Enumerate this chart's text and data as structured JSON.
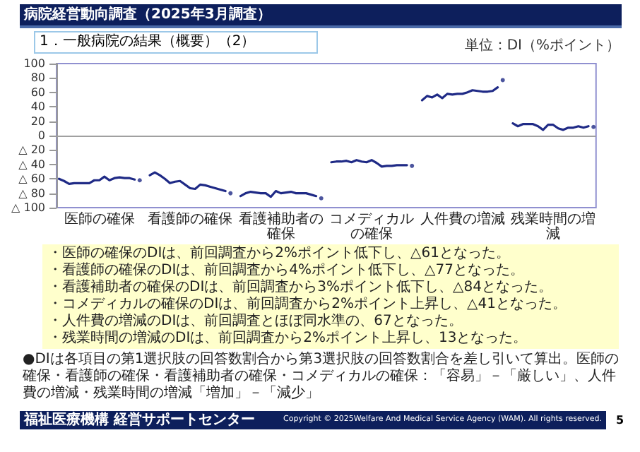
{
  "chart_data": {
    "type": "line",
    "title": "病院経営動向調査（2025年3月調査）",
    "subtitle": "1．一般病院の結果（概要）（2）",
    "ylabel": "単位：DI（%ポイント）",
    "categories": [
      null,
      null,
      null,
      null,
      null,
      null,
      null,
      null,
      "医師の確保",
      null,
      null,
      null,
      null,
      null,
      null,
      null,
      null,
      null,
      null,
      null,
      null,
      null,
      null,
      null,
      null,
      null,
      "看護師の確保",
      null,
      null,
      null,
      null,
      null,
      null,
      null,
      null,
      null,
      null,
      null,
      null,
      null,
      null,
      null,
      null,
      null,
      "看護補助者の確保",
      null,
      null,
      null,
      null,
      null,
      null,
      null,
      null,
      null,
      null,
      null,
      null,
      null,
      null,
      null,
      null,
      null,
      "コメディカルの確保",
      null,
      null,
      null,
      null,
      null,
      null,
      null,
      null,
      null,
      null,
      null,
      null,
      null,
      null,
      null,
      null,
      null,
      "人件費の増減",
      null,
      null,
      null,
      null,
      null,
      null,
      null,
      null,
      null,
      null,
      null,
      null,
      null,
      null,
      null,
      null,
      null,
      "残業時間の増減",
      null,
      null,
      null,
      null,
      null,
      null,
      null,
      null
    ],
    "series": [
      {
        "color": "#1f2a86",
        "values": [
          -60,
          -63,
          -67,
          -66,
          -66,
          -66,
          -66,
          -62,
          -62,
          -57,
          -62,
          -59,
          -58,
          -59,
          -59,
          -61,
          null,
          null,
          -55,
          -51,
          -55,
          -60,
          -66,
          -64,
          -63,
          -68,
          -73,
          -74,
          -68,
          -69,
          -71,
          -73,
          -75,
          -77,
          null,
          null,
          -84,
          -80,
          -78,
          -79,
          -80,
          -80,
          -85,
          -77,
          -80,
          -79,
          -78,
          -80,
          -80,
          -80,
          -82,
          -84,
          null,
          null,
          -37,
          -36,
          -36,
          -35,
          -37,
          -34,
          -36,
          -37,
          -34,
          -38,
          -43,
          -42,
          -42,
          -41,
          -41,
          -41,
          null,
          null,
          49,
          55,
          53,
          57,
          52,
          58,
          57,
          58,
          58,
          60,
          63,
          62,
          61,
          61,
          62,
          67,
          null,
          null,
          17,
          13,
          16,
          16,
          16,
          13,
          8,
          15,
          15,
          10,
          8,
          11,
          11,
          13,
          11,
          13,
          null
        ]
      },
      {
        "type": "scatter",
        "color": "#1f2a86",
        "values": [
          null,
          null,
          null,
          null,
          null,
          null,
          null,
          null,
          null,
          null,
          null,
          null,
          null,
          null,
          null,
          null,
          -62,
          null,
          null,
          null,
          null,
          null,
          null,
          null,
          null,
          null,
          null,
          null,
          null,
          null,
          null,
          null,
          null,
          null,
          -80,
          null,
          null,
          null,
          null,
          null,
          null,
          null,
          null,
          null,
          null,
          null,
          null,
          null,
          null,
          null,
          null,
          null,
          -87,
          null,
          null,
          null,
          null,
          null,
          null,
          null,
          null,
          null,
          null,
          null,
          null,
          null,
          null,
          null,
          null,
          null,
          -42,
          null,
          null,
          null,
          null,
          null,
          null,
          null,
          null,
          null,
          null,
          null,
          null,
          null,
          null,
          null,
          null,
          null,
          77,
          null,
          null,
          null,
          null,
          null,
          null,
          null,
          null,
          null,
          null,
          null,
          null,
          null,
          null,
          null,
          null,
          null,
          12
        ]
      }
    ],
    "ylim": [
      -100,
      100
    ],
    "yticks": [
      {
        "value": -100,
        "label": "△ 100"
      },
      {
        "value": -80,
        "label": "△ 80"
      },
      {
        "value": -60,
        "label": "△ 60"
      },
      {
        "value": -40,
        "label": "△ 40"
      },
      {
        "value": -20,
        "label": "△ 20"
      },
      0,
      20,
      40,
      60,
      80,
      100
    ],
    "ref_lines": [
      {
        "axis": "y",
        "value": 0,
        "color": "#a0a0a0"
      }
    ],
    "annotations": [
      "・医師の確保のDIは、前回調査から2%ポイント低下し、△61となった。",
      "・看護師の確保のDIは、前回調査から4%ポイント低下し、△77となった。",
      "・看護補助者の確保のDIは、前回調査から3%ポイント低下し、△84となった。",
      "・コメディカルの確保のDIは、前回調査から2%ポイント上昇し、△41となった。",
      "・人件費の増減のDIは、前回調査とほぼ同水準の、67となった。",
      "・残業時間の増減のDIは、前回調査から2%ポイント上昇し、13となった。",
      "●DIは各項目の第1選択肢の回答数割合から第3選択肢の回答数割合を差し引いて算出。医師の確保・看護師の確保・看護補助者の確保・コメディカルの確保：「容易」－「厳しい」、人件費の増減・残業時間の増減「増加」－「減少」",
      "福祉医療機構 経営サポートセンター",
      "Copyright © 2025Welfare And Medical Service Agency (WAM). All rights reserved.",
      "5"
    ]
  }
}
